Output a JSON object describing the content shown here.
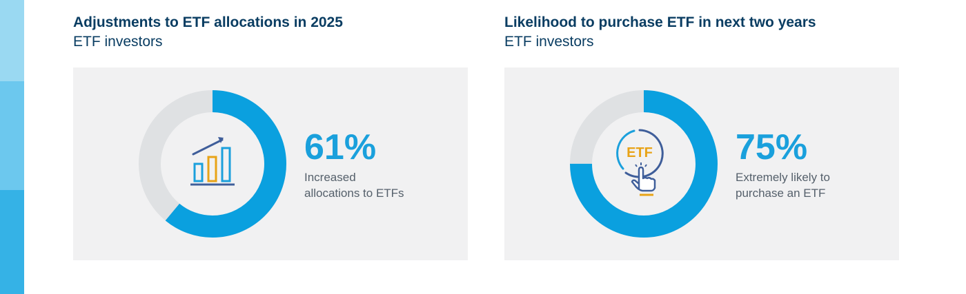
{
  "colors": {
    "filled": "#0aa0df",
    "remainder": "#dfe1e3",
    "percent_text": "#1aa0dc",
    "title_text": "#0a3d62",
    "icon_blue": "#1ba0dc",
    "icon_gold": "#e8a317",
    "icon_navy": "#3f5e9a"
  },
  "chart_data": [
    {
      "type": "pie",
      "title": "Adjustments to ETF allocations in 2025",
      "subtitle": "ETF investors",
      "value": 61,
      "value_label": "61%",
      "caption": "Increased allocations to ETFs",
      "icon": "growth-bar-chart-icon"
    },
    {
      "type": "pie",
      "title": "Likelihood to purchase ETF in next two years",
      "subtitle": "ETF investors",
      "value": 75,
      "value_label": "75%",
      "caption": "Extremely likely to purchase an ETF",
      "icon": "etf-click-icon",
      "icon_text": "ETF"
    }
  ]
}
